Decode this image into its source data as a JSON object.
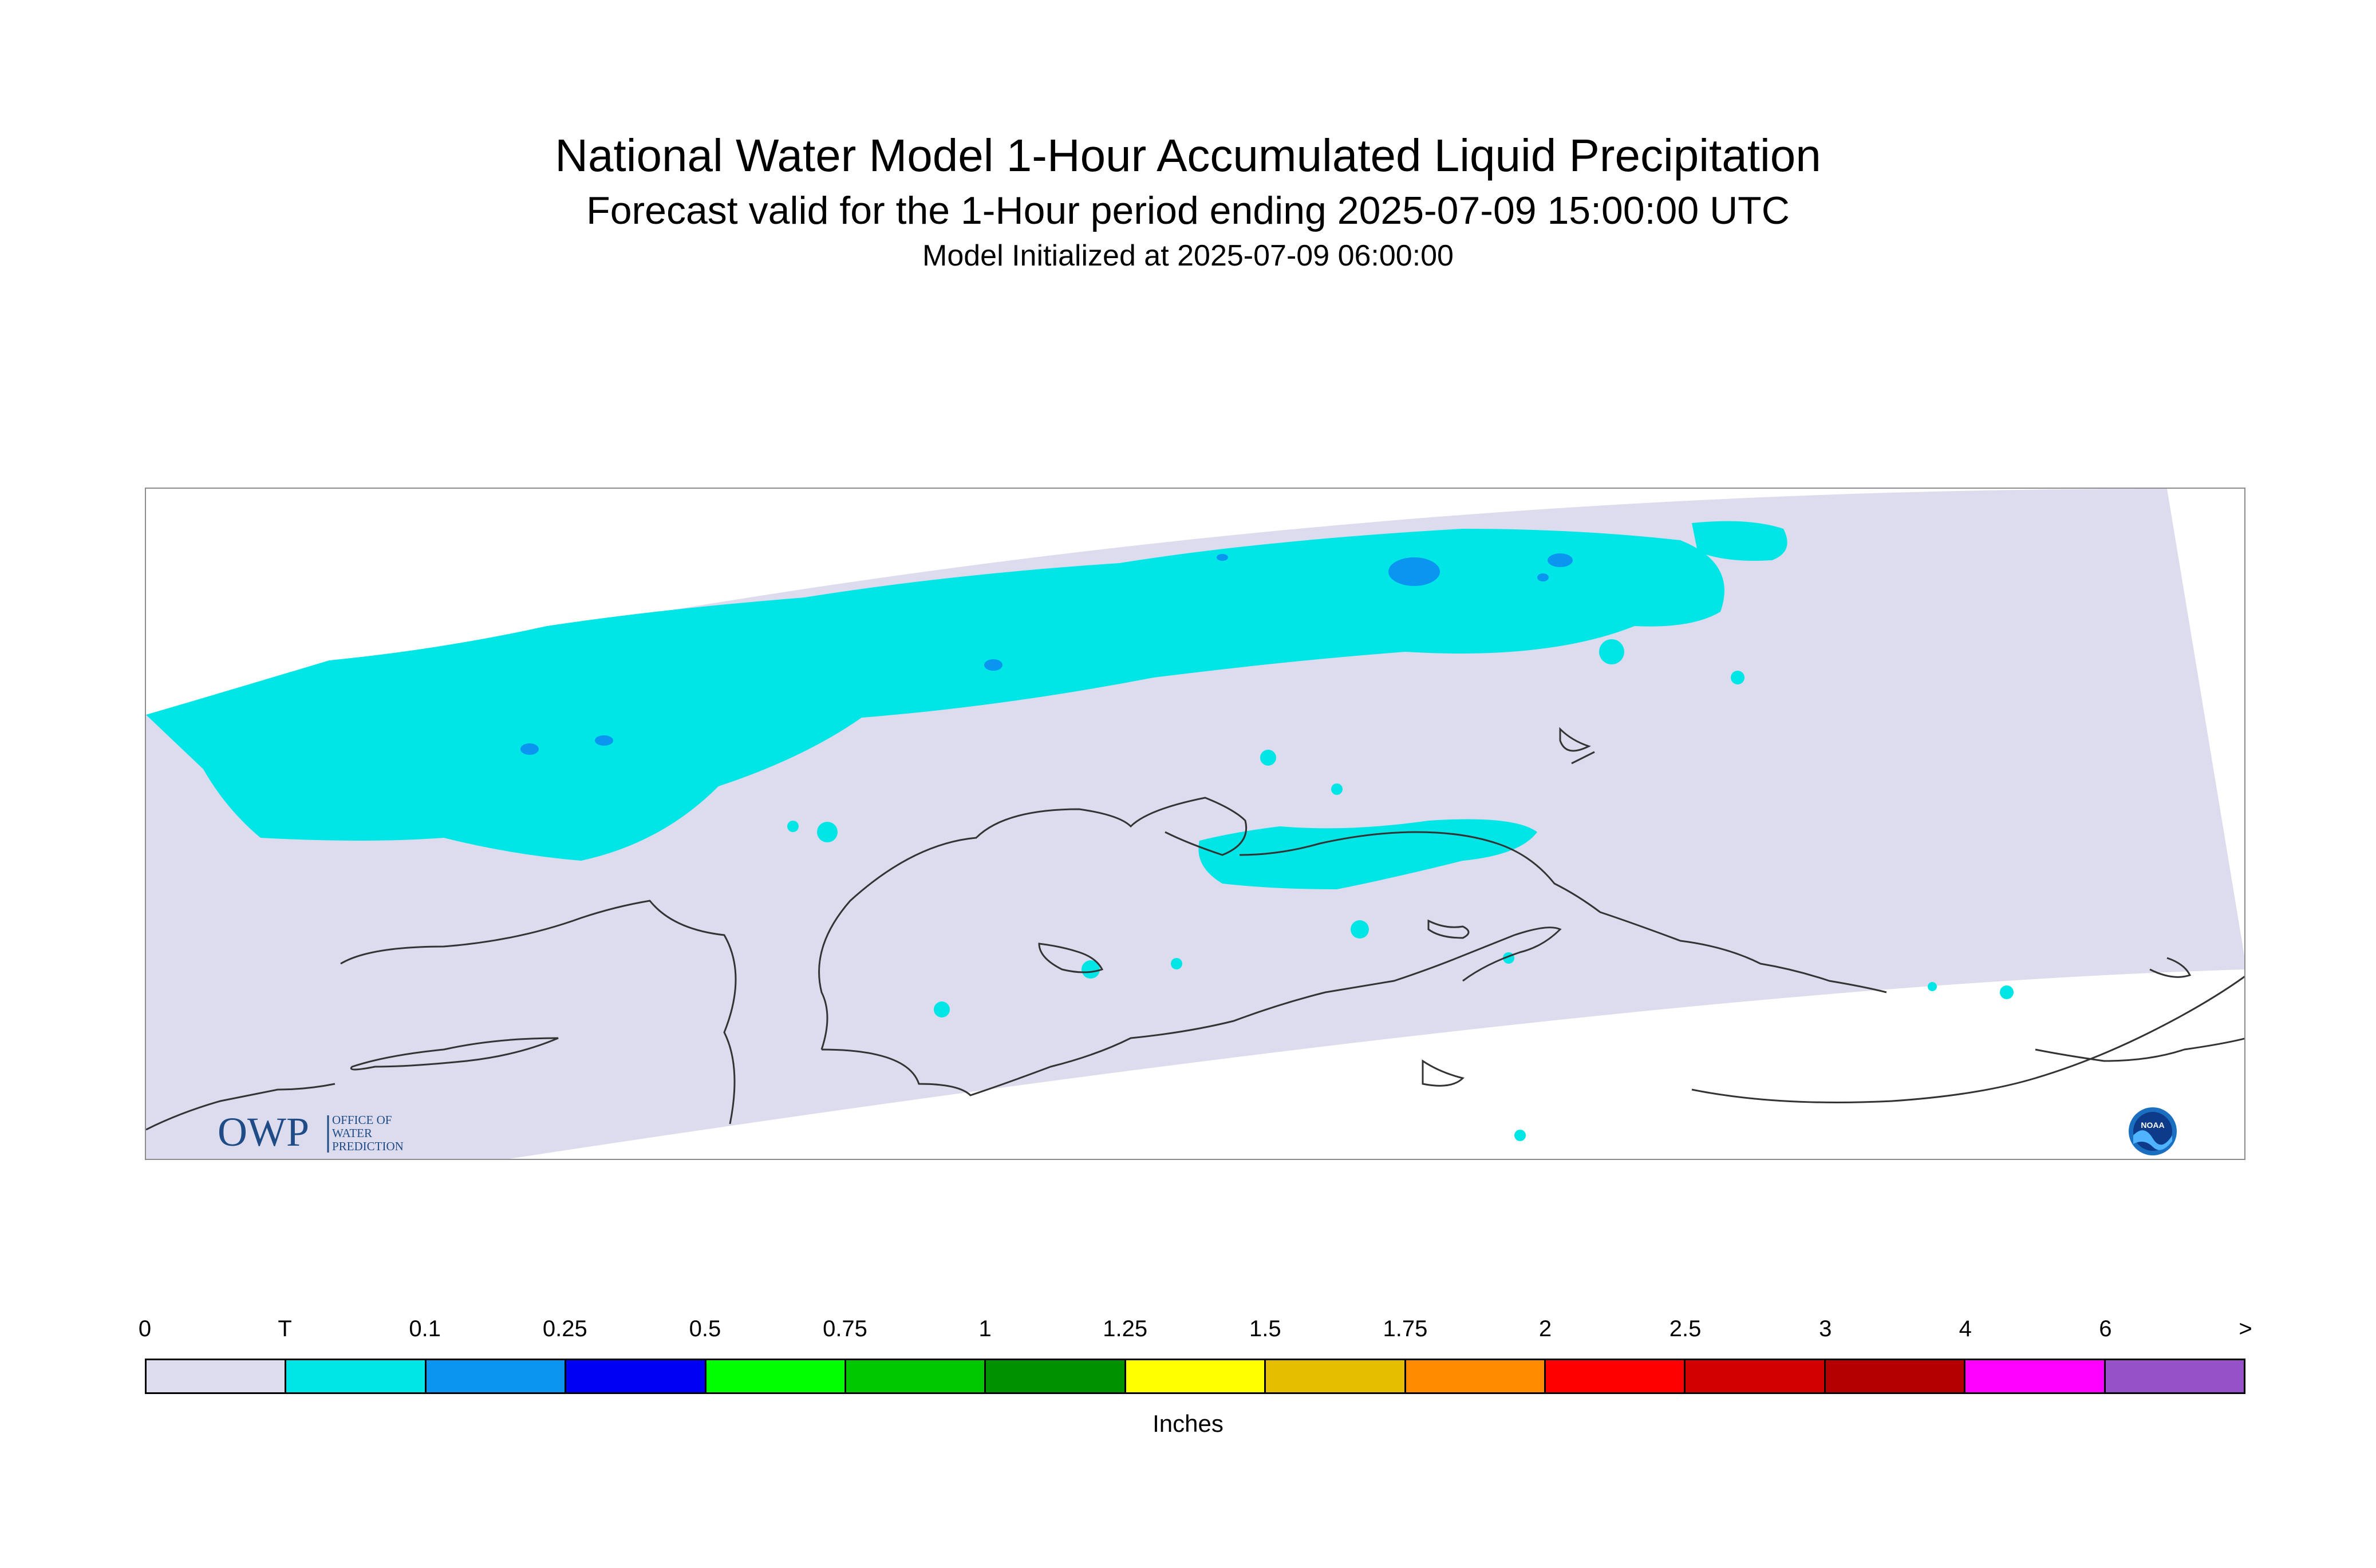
{
  "header": {
    "title": "National Water Model 1-Hour Accumulated Liquid Precipitation",
    "subtitle": "Forecast valid for the 1-Hour period ending 2025-07-09 15:00:00 UTC",
    "init": "Model Initialized at 2025-07-09 06:00:00"
  },
  "map": {
    "domain_color": "#dcdcee",
    "coastline_color": "#333333",
    "precip_trace_color": "#00e6e6",
    "precip_moderate_color": "#0a96f0"
  },
  "logos": {
    "owp_text": "OWP",
    "owp_line1": "OFFICE OF",
    "owp_line2": "WATER",
    "owp_line3": "PREDICTION",
    "noaa_text": "NOAA"
  },
  "legend": {
    "labels": [
      "0",
      "T",
      "0.1",
      "0.25",
      "0.5",
      "0.75",
      "1",
      "1.25",
      "1.5",
      "1.75",
      "2",
      "2.5",
      "3",
      "4",
      "6",
      ">"
    ],
    "colors": [
      "#dcdcee",
      "#00e6e6",
      "#0a96f0",
      "#0000f5",
      "#00ff00",
      "#00c800",
      "#009100",
      "#ffff00",
      "#e6be00",
      "#ff8c00",
      "#ff0000",
      "#d20000",
      "#b40000",
      "#ff00ff",
      "#9650c8"
    ],
    "units": "Inches"
  }
}
